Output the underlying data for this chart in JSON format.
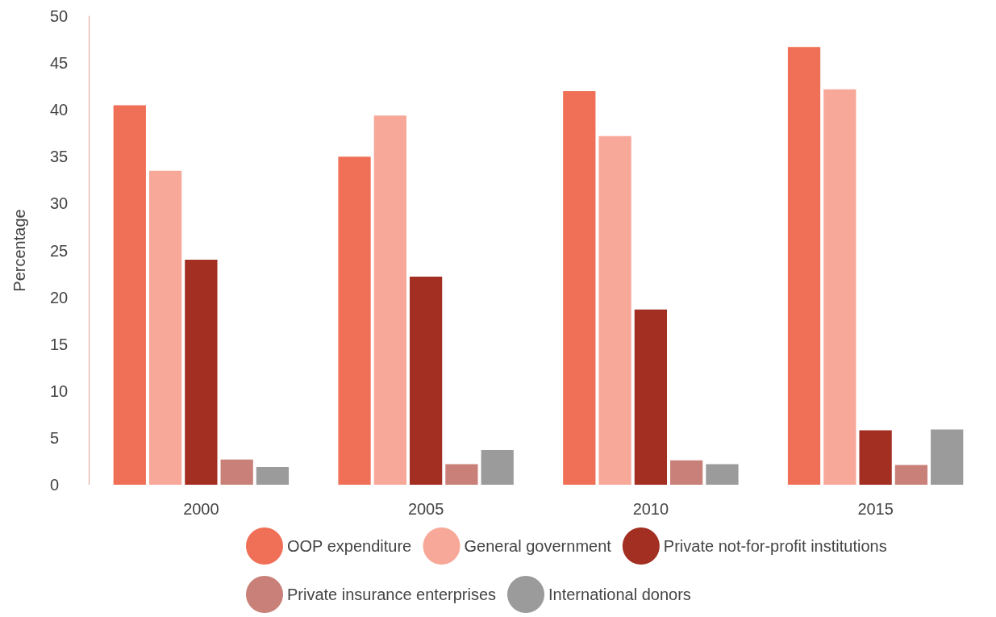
{
  "chart_data": {
    "type": "bar",
    "ylabel": "Percentage",
    "categories": [
      "2000",
      "2005",
      "2010",
      "2015"
    ],
    "series": [
      {
        "name": "OOP expenditure",
        "color": "#f07057",
        "values": [
          40.5,
          35.0,
          42.0,
          46.7
        ]
      },
      {
        "name": "General government",
        "color": "#f7a898",
        "values": [
          33.5,
          39.4,
          37.2,
          42.2
        ]
      },
      {
        "name": "Private not-for-profit institutions",
        "color": "#a32e22",
        "values": [
          24.0,
          22.2,
          18.7,
          5.8
        ]
      },
      {
        "name": "Private insurance enterprises",
        "color": "#c98078",
        "values": [
          2.7,
          2.2,
          2.6,
          2.1
        ]
      },
      {
        "name": "International donors",
        "color": "#9b9b9b",
        "values": [
          1.9,
          3.7,
          2.2,
          5.9
        ]
      }
    ],
    "ylim": [
      0,
      50
    ],
    "yticks": [
      0,
      5,
      10,
      15,
      20,
      25,
      30,
      35,
      40,
      45,
      50
    ],
    "grid": false,
    "legend": "bottom"
  }
}
